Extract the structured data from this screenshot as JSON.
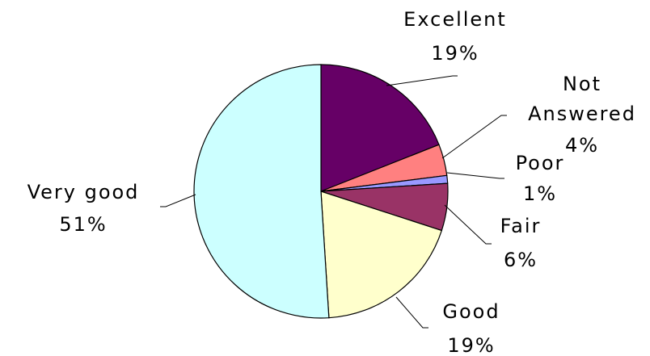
{
  "chart_data": {
    "type": "pie",
    "title": "",
    "slices": [
      {
        "key": "excellent",
        "name": "Excellent",
        "value": 19,
        "percent_label": "19%",
        "color": "#660066"
      },
      {
        "key": "not_answered",
        "name": "Not Answered",
        "value": 4,
        "percent_label": "4%",
        "color": "#ff8080"
      },
      {
        "key": "poor",
        "name": "Poor",
        "value": 1,
        "percent_label": "1%",
        "color": "#9999ff"
      },
      {
        "key": "fair",
        "name": "Fair",
        "value": 6,
        "percent_label": "6%",
        "color": "#993366"
      },
      {
        "key": "good",
        "name": "Good",
        "value": 19,
        "percent_label": "19%",
        "color": "#ffffcc"
      },
      {
        "key": "very_good",
        "name": "Very good",
        "value": 51,
        "percent_label": "51%",
        "color": "#ccffff"
      }
    ],
    "legend": "none",
    "data_labels": "category and percent, outside with leader lines"
  }
}
